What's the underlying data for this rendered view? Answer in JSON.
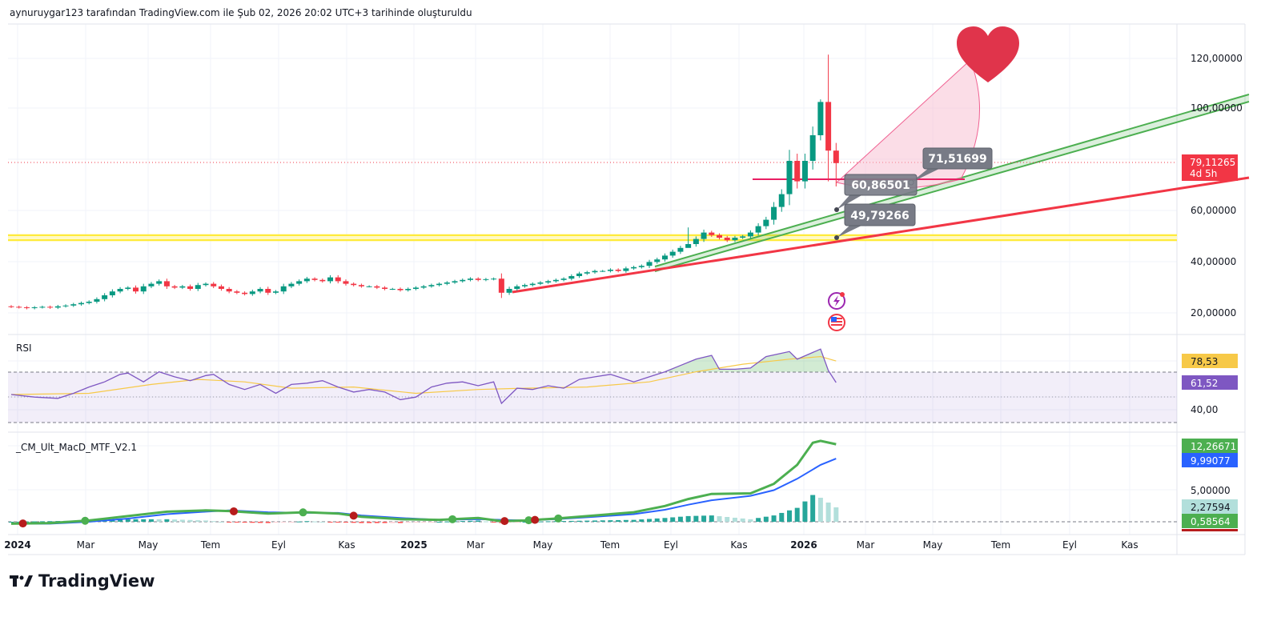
{
  "header": {
    "title": "aynuruygar123 tarafından TradingView.com ile Şub 02, 2026 20:02 UTC+3 tarihinde oluşturuldu"
  },
  "branding": {
    "logo_text": "TradingView"
  },
  "colors": {
    "up": "#089981",
    "down": "#f23645",
    "rsi": "#7e57c2",
    "rsi_ma": "#f7c948",
    "macd": "#4caf50",
    "signal": "#2962ff",
    "trend_red": "#f23645",
    "trend_green": "#4caf50",
    "support_yellow": "#ffeb3b",
    "heart": "#e0344b"
  },
  "time_axis": [
    "2024",
    "Mar",
    "May",
    "Tem",
    "Eyl",
    "Kas",
    "2025",
    "Mar",
    "May",
    "Tem",
    "Eyl",
    "Kas",
    "2026",
    "Mar",
    "May",
    "Tem",
    "Eyl",
    "Kas"
  ],
  "price_axis": [
    "120,00000",
    "100,00000",
    "60,00000",
    "40,00000",
    "20,00000"
  ],
  "current_price": {
    "value": "79,11265",
    "countdown": "4d 5h"
  },
  "drawings": {
    "callout_1": "71,51699",
    "callout_2": "60,86501",
    "callout_3": "49,79266",
    "icons": [
      "lightning-event-icon",
      "us-flag-event-icon",
      "heart-icon"
    ]
  },
  "rsi_pane": {
    "title": "RSI",
    "rsi_value": "61,52",
    "ma_value": "78,53",
    "axis_label": "40,00"
  },
  "macd_pane": {
    "title": "_CM_Ult_MacD_MTF_V2.1",
    "macd_value": "12,26671",
    "signal_value": "9,99077",
    "axis_label": "5,00000",
    "hist_value": "2,27594",
    "last_value": "0,58564"
  },
  "chart_data": [
    {
      "type": "candlestick",
      "interval": "weekly",
      "ylim": [
        10,
        130
      ],
      "closes": [
        23,
        22.8,
        22.5,
        22.8,
        23,
        22.7,
        23.2,
        23.5,
        24,
        24.5,
        25,
        26,
        27.5,
        29,
        30,
        30.5,
        29,
        31,
        32,
        33,
        31,
        30.5,
        31,
        30,
        31.5,
        32,
        31,
        30,
        29,
        28.5,
        28,
        29,
        30,
        28.5,
        29,
        31,
        32,
        33,
        34,
        33.5,
        33,
        34.5,
        33,
        32,
        31.5,
        31,
        31,
        30.5,
        30,
        30,
        29.5,
        30,
        30.5,
        31,
        31.5,
        32,
        32.5,
        33,
        33.5,
        34,
        33.5,
        33.8,
        34,
        28.5,
        30,
        31,
        31.5,
        32,
        32.5,
        33,
        33.5,
        34,
        35,
        36,
        36.5,
        37,
        37,
        37.5,
        37,
        38,
        38.5,
        39,
        40.5,
        41.5,
        43,
        44.5,
        46,
        47.5,
        49.5,
        52,
        51,
        50,
        49,
        50,
        50.5,
        52,
        54.5,
        57,
        62,
        67,
        80,
        72,
        80,
        90,
        103,
        84,
        79.11265
      ],
      "extremes": {
        "105": {
          "high": 121.5,
          "low": 72
        },
        "106": {
          "high": 87,
          "low": 70
        },
        "104": {
          "high": 104,
          "low": 88
        },
        "87": {
          "high": 54,
          "low": 47
        }
      }
    },
    {
      "type": "line",
      "name": "RSI",
      "ylim": [
        30,
        95
      ],
      "levels": [
        70,
        50,
        30
      ],
      "rsi": [
        [
          0,
          52
        ],
        [
          3,
          50
        ],
        [
          6,
          49
        ],
        [
          8,
          53
        ],
        [
          10,
          58
        ],
        [
          12,
          62
        ],
        [
          14,
          68
        ],
        [
          15,
          69
        ],
        [
          17,
          62
        ],
        [
          19,
          70
        ],
        [
          21,
          66
        ],
        [
          23,
          63
        ],
        [
          25,
          67
        ],
        [
          26,
          68
        ],
        [
          28,
          60
        ],
        [
          30,
          56
        ],
        [
          32,
          60
        ],
        [
          34,
          53
        ],
        [
          36,
          60
        ],
        [
          38,
          61
        ],
        [
          40,
          63
        ],
        [
          42,
          58
        ],
        [
          44,
          54
        ],
        [
          46,
          56
        ],
        [
          48,
          54
        ],
        [
          50,
          48
        ],
        [
          52,
          50
        ],
        [
          54,
          58
        ],
        [
          56,
          61
        ],
        [
          58,
          62
        ],
        [
          60,
          59
        ],
        [
          62,
          62
        ],
        [
          63,
          45
        ],
        [
          65,
          57
        ],
        [
          67,
          56
        ],
        [
          69,
          59
        ],
        [
          71,
          57
        ],
        [
          73,
          64
        ],
        [
          75,
          66
        ],
        [
          77,
          68
        ],
        [
          78,
          66
        ],
        [
          80,
          62
        ],
        [
          82,
          66
        ],
        [
          84,
          70
        ],
        [
          86,
          75
        ],
        [
          88,
          80
        ],
        [
          90,
          83
        ],
        [
          91,
          72
        ],
        [
          93,
          72
        ],
        [
          95,
          73
        ],
        [
          97,
          82
        ],
        [
          100,
          86
        ],
        [
          101,
          80
        ],
        [
          104,
          88
        ],
        [
          105,
          71
        ],
        [
          106,
          61.52
        ]
      ],
      "ma": [
        [
          0,
          52
        ],
        [
          10,
          53
        ],
        [
          18,
          60
        ],
        [
          24,
          64
        ],
        [
          30,
          62
        ],
        [
          36,
          57
        ],
        [
          44,
          58
        ],
        [
          52,
          53
        ],
        [
          60,
          56
        ],
        [
          66,
          57
        ],
        [
          74,
          58
        ],
        [
          82,
          62
        ],
        [
          88,
          70
        ],
        [
          94,
          76
        ],
        [
          100,
          80
        ],
        [
          104,
          82
        ],
        [
          106,
          78.53
        ]
      ]
    },
    {
      "type": "line",
      "name": "MACD",
      "macd": [
        [
          0,
          -0.3
        ],
        [
          5,
          -0.2
        ],
        [
          10,
          0.2
        ],
        [
          15,
          0.9
        ],
        [
          20,
          1.6
        ],
        [
          25,
          1.8
        ],
        [
          28,
          1.7
        ],
        [
          33,
          1.3
        ],
        [
          38,
          1.5
        ],
        [
          42,
          1.3
        ],
        [
          45,
          0.8
        ],
        [
          50,
          0.4
        ],
        [
          55,
          0.3
        ],
        [
          60,
          0.6
        ],
        [
          63,
          0.1
        ],
        [
          66,
          0.2
        ],
        [
          70,
          0.5
        ],
        [
          75,
          1.0
        ],
        [
          80,
          1.5
        ],
        [
          84,
          2.5
        ],
        [
          87,
          3.6
        ],
        [
          90,
          4.4
        ],
        [
          95,
          4.5
        ],
        [
          98,
          6.0
        ],
        [
          101,
          9.0
        ],
        [
          103,
          12.5
        ],
        [
          104,
          12.8
        ],
        [
          106,
          12.27
        ]
      ],
      "signal": [
        [
          0,
          -0.3
        ],
        [
          5,
          -0.3
        ],
        [
          10,
          0.0
        ],
        [
          15,
          0.5
        ],
        [
          20,
          1.2
        ],
        [
          25,
          1.6
        ],
        [
          28,
          1.8
        ],
        [
          33,
          1.5
        ],
        [
          38,
          1.4
        ],
        [
          42,
          1.4
        ],
        [
          45,
          1.0
        ],
        [
          50,
          0.6
        ],
        [
          55,
          0.3
        ],
        [
          60,
          0.4
        ],
        [
          63,
          0.3
        ],
        [
          66,
          0.2
        ],
        [
          70,
          0.4
        ],
        [
          75,
          0.8
        ],
        [
          80,
          1.2
        ],
        [
          84,
          1.9
        ],
        [
          87,
          2.7
        ],
        [
          90,
          3.4
        ],
        [
          95,
          4.1
        ],
        [
          98,
          5.0
        ],
        [
          101,
          6.8
        ],
        [
          104,
          9.0
        ],
        [
          106,
          9.99
        ]
      ],
      "cross_points": [
        [
          1.5,
          "bear"
        ],
        [
          9.5,
          "bull"
        ],
        [
          28.6,
          "bear"
        ],
        [
          37.5,
          "bull"
        ],
        [
          44,
          "bear"
        ],
        [
          56.7,
          "bull"
        ],
        [
          63.4,
          "bear"
        ],
        [
          66.5,
          "bull"
        ],
        [
          67.3,
          "bear"
        ],
        [
          70.3,
          "bull"
        ]
      ]
    }
  ]
}
